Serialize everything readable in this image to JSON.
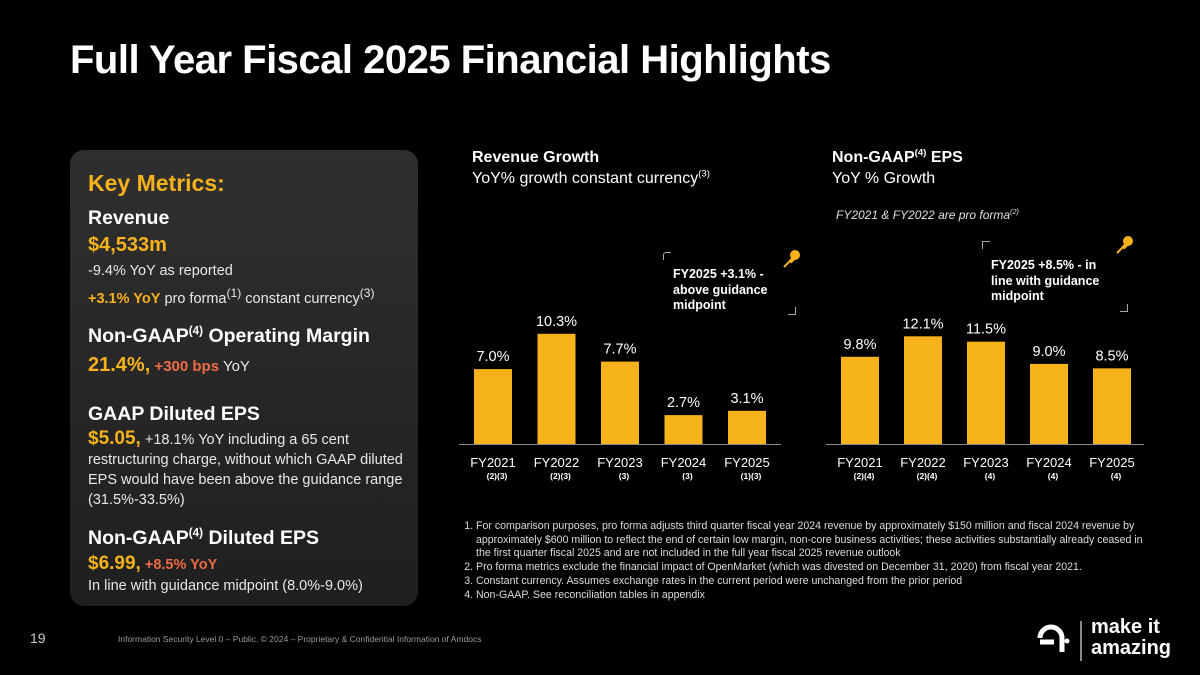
{
  "title": "Full Year Fiscal 2025 Financial Highlights",
  "key_metrics": {
    "heading": "Key Metrics:",
    "revenue": {
      "label": "Revenue",
      "value": "$4,533m",
      "yoy_reported": "-9.4% YoY as reported",
      "yoy_cc_highlight": "+3.1% YoY",
      "yoy_cc_text": " pro forma",
      "yoy_cc_sup1": "(1)",
      "yoy_cc_text2": " constant currency",
      "yoy_cc_sup2": "(3)"
    },
    "op_margin": {
      "label_a": "Non-GAAP",
      "label_sup": "(4)",
      "label_b": " Operating Margin",
      "value": "21.4%,",
      "change": " +300 bps",
      "suffix": " YoY"
    },
    "gaap_eps": {
      "label": "GAAP Diluted EPS",
      "value": "$5.05,",
      "text": " +18.1% YoY including a 65 cent restructuring charge, without which GAAP diluted EPS would have been above the guidance range (31.5%-33.5%)"
    },
    "nongaap_eps": {
      "label_a": "Non-GAAP",
      "label_sup": "(4)",
      "label_b": " Diluted EPS",
      "value": "$6.99,",
      "change": " +8.5% YoY",
      "note": "In line with guidance midpoint (8.0%-9.0%)"
    }
  },
  "revenue_chart": {
    "title_bold": "Revenue Growth",
    "subtitle": "YoY% growth constant currency",
    "subtitle_sup": "(3)",
    "callout_l1": "FY2025 +3.1% -",
    "callout_l2": "above guidance",
    "callout_l3": "midpoint"
  },
  "eps_chart": {
    "title_a": "Non-GAAP",
    "title_sup": "(4)",
    "title_b": " EPS",
    "subtitle": "YoY % Growth",
    "pro_forma_note": "FY2021 & FY2022 are pro forma",
    "pro_forma_sup": "(2)",
    "callout_l1": "FY2025 +8.5% - in",
    "callout_l2": "line with guidance",
    "callout_l3": "midpoint"
  },
  "chart_data": [
    {
      "type": "bar",
      "title": "Revenue Growth",
      "ylabel": "YoY% growth constant currency(3)",
      "categories": [
        "FY2021",
        "FY2022",
        "FY2023",
        "FY2024",
        "FY2025"
      ],
      "category_notes": [
        "(2)(3)",
        "(2)(3)",
        "(3)",
        "(3)",
        "(1)(3)"
      ],
      "values": [
        7.0,
        10.3,
        7.7,
        2.7,
        3.1
      ],
      "value_labels": [
        "7.0%",
        "10.3%",
        "7.7%",
        "2.7%",
        "3.1%"
      ],
      "color": "#f6b21b"
    },
    {
      "type": "bar",
      "title": "Non-GAAP(4) EPS",
      "ylabel": "YoY % Growth",
      "categories": [
        "FY2021",
        "FY2022",
        "FY2023",
        "FY2024",
        "FY2025"
      ],
      "category_notes": [
        "(2)(4)",
        "(2)(4)",
        "(4)",
        "(4)",
        "(4)"
      ],
      "values": [
        9.8,
        12.1,
        11.5,
        9.0,
        8.5
      ],
      "value_labels": [
        "9.8%",
        "12.1%",
        "11.5%",
        "9.0%",
        "8.5%"
      ],
      "color": "#f6b21b"
    }
  ],
  "footnotes": [
    "For comparison purposes, pro forma adjusts third quarter fiscal year 2024 revenue by approximately $150 million and fiscal 2024 revenue by approximately $600 million to reflect the end of certain low margin, non-core business activities; these activities substantially already ceased in the first quarter fiscal 2025 and are not included in the full year fiscal 2025 revenue outlook",
    "Pro forma metrics exclude the financial impact of OpenMarket (which was divested on December 31, 2020) from fiscal year 2021.",
    "Constant currency. Assumes exchange rates in the current period were unchanged from the prior period",
    "Non-GAAP. See reconciliation tables in appendix"
  ],
  "footer": {
    "page_number": "19",
    "copyright": "Information Security Level 0 – Public. © 2024 – Proprietary & Confidential Information of Amdocs",
    "logo_line1": "make it",
    "logo_line2": "amazing"
  },
  "colors": {
    "accent": "#f6b21b",
    "highlight": "#ef6b45",
    "background": "#000000"
  },
  "icons": [
    "pushpin-icon",
    "amdocs-logo-icon"
  ]
}
